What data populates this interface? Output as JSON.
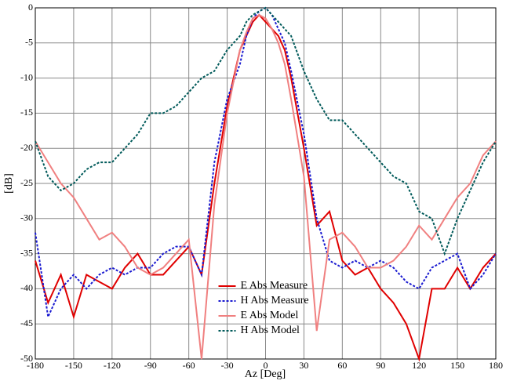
{
  "chart_data": {
    "type": "line",
    "xlabel": "Az [Deg]",
    "ylabel": "[dB]",
    "x": [
      -180,
      -170,
      -160,
      -150,
      -140,
      -130,
      -120,
      -110,
      -100,
      -90,
      -80,
      -70,
      -60,
      -50,
      -40,
      -30,
      -20,
      -15,
      -10,
      -5,
      0,
      5,
      10,
      15,
      20,
      30,
      40,
      50,
      60,
      70,
      80,
      90,
      100,
      110,
      120,
      130,
      140,
      150,
      160,
      170,
      180
    ],
    "series": [
      {
        "name": "E Abs Measure",
        "color": "#e00000",
        "style": "solid",
        "values": [
          -36,
          -42,
          -38,
          -44,
          -38,
          -39,
          -40,
          -37,
          -35,
          -38,
          -38,
          -36,
          -34,
          -38,
          -25,
          -14,
          -6,
          -4,
          -2,
          -1,
          -2,
          -3,
          -4,
          -6,
          -10,
          -20,
          -31,
          -29,
          -36,
          -38,
          -37,
          -40,
          -42,
          -45,
          -50,
          -40,
          -40,
          -37,
          -40,
          -37,
          -35
        ]
      },
      {
        "name": "H Abs Measure",
        "color": "#1a1ad0",
        "style": "dotted",
        "values": [
          -32,
          -44,
          -40,
          -38,
          -40,
          -38,
          -37,
          -38,
          -37,
          -37,
          -35,
          -34,
          -34,
          -38,
          -22,
          -13,
          -8,
          -4,
          -1.5,
          -0.5,
          0,
          -1,
          -3,
          -5,
          -9,
          -18,
          -30,
          -36,
          -37,
          -36,
          -37,
          -36,
          -37,
          -39,
          -40,
          -37,
          -36,
          -35,
          -40,
          -38,
          -35
        ]
      },
      {
        "name": "E Abs Model",
        "color": "#f08080",
        "style": "solid",
        "values": [
          -19,
          -22,
          -25,
          -27,
          -30,
          -33,
          -32,
          -34,
          -37,
          -38,
          -37,
          -35,
          -33,
          -50,
          -28,
          -15,
          -6,
          -3.5,
          -1.5,
          -1,
          -1.5,
          -3,
          -5,
          -8,
          -13,
          -24,
          -46,
          -33,
          -32,
          -34,
          -37,
          -37,
          -36,
          -34,
          -31,
          -33,
          -30,
          -27,
          -25,
          -21,
          -19
        ]
      },
      {
        "name": "H Abs Model",
        "color": "#005a5a",
        "style": "dotted",
        "values": [
          -19,
          -24,
          -26,
          -25,
          -23,
          -22,
          -22,
          -20,
          -18,
          -15,
          -15,
          -14,
          -12,
          -10,
          -9,
          -6,
          -4,
          -2,
          -1,
          -0.5,
          0,
          -1,
          -2,
          -3,
          -4,
          -9,
          -13,
          -16,
          -16,
          -18,
          -20,
          -22,
          -24,
          -25,
          -29,
          -30,
          -35,
          -30,
          -26,
          -22,
          -19
        ]
      }
    ],
    "xlim": [
      -180,
      180
    ],
    "xticks": [
      -180,
      -150,
      -120,
      -90,
      -60,
      -30,
      0,
      30,
      60,
      90,
      120,
      150,
      180
    ],
    "ylim": [
      -50,
      0
    ],
    "yticks": [
      0,
      -5,
      -10,
      -15,
      -20,
      -25,
      -30,
      -35,
      -40,
      -45,
      -50
    ],
    "grid": true,
    "legend": "bottom-center"
  }
}
